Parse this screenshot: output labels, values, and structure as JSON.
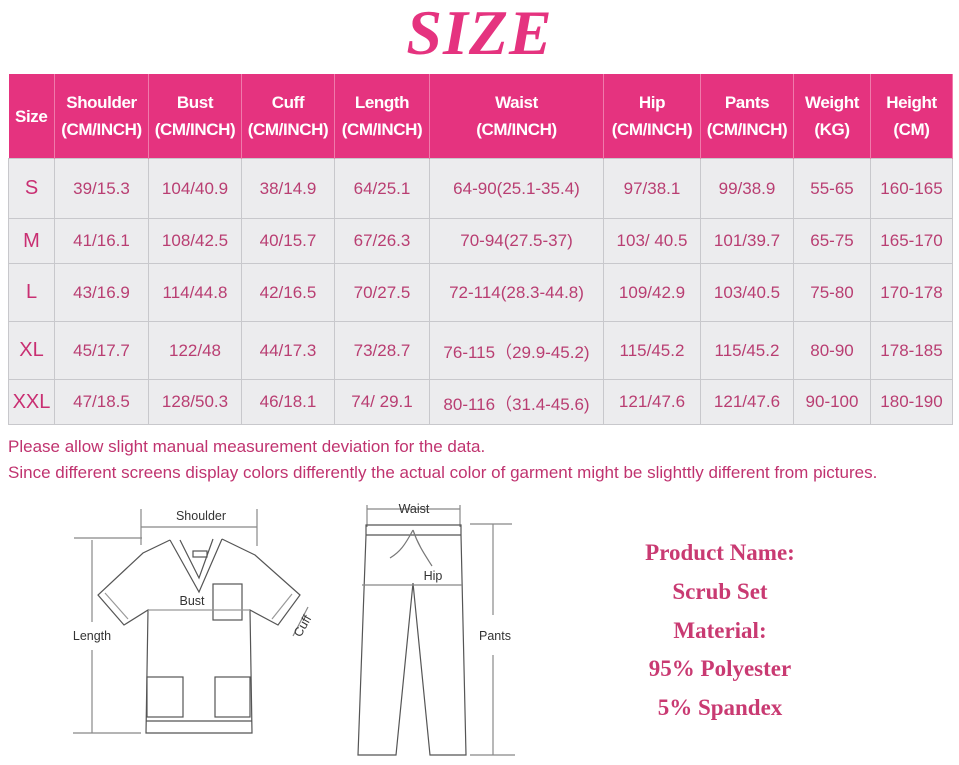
{
  "title": "SIZE",
  "table": {
    "headers": [
      {
        "name": "Size",
        "unit": ""
      },
      {
        "name": "Shoulder",
        "unit": "(CM/INCH)"
      },
      {
        "name": "Bust",
        "unit": "(CM/INCH)"
      },
      {
        "name": "Cuff",
        "unit": "(CM/INCH)"
      },
      {
        "name": "Length",
        "unit": "(CM/INCH)"
      },
      {
        "name": "Waist",
        "unit": "(CM/INCH)"
      },
      {
        "name": "Hip",
        "unit": "(CM/INCH)"
      },
      {
        "name": "Pants",
        "unit": "(CM/INCH)"
      },
      {
        "name": "Weight",
        "unit": "(KG)"
      },
      {
        "name": "Height",
        "unit": "(CM)"
      }
    ],
    "rows": [
      [
        "S",
        "39/15.3",
        "104/40.9",
        "38/14.9",
        "64/25.1",
        "64-90(25.1-35.4)",
        "97/38.1",
        "99/38.9",
        "55-65",
        "160-165"
      ],
      [
        "M",
        "41/16.1",
        "108/42.5",
        "40/15.7",
        "67/26.3",
        "70-94(27.5-37)",
        "103/ 40.5",
        "101/39.7",
        "65-75",
        "165-170"
      ],
      [
        "L",
        "43/16.9",
        "114/44.8",
        "42/16.5",
        "70/27.5",
        "72-114(28.3-44.8)",
        "109/42.9",
        "103/40.5",
        "75-80",
        "170-178"
      ],
      [
        "XL",
        "45/17.7",
        "122/48",
        "44/17.3",
        "73/28.7",
        "76-115（29.9-45.2)",
        "115/45.2",
        "115/45.2",
        "80-90",
        "178-185"
      ],
      [
        "XXL",
        "47/18.5",
        "128/50.3",
        "46/18.1",
        "74/ 29.1",
        "80-116（31.4-45.6)",
        "121/47.6",
        "121/47.6",
        "90-100",
        "180-190"
      ]
    ]
  },
  "notes": [
    "Please allow slight manual measurement deviation for the data.",
    "Since different screens display colors differently the actual color of garment might be slighttly different from pictures."
  ],
  "diagram_labels": {
    "shoulder": "Shoulder",
    "bust": "Bust",
    "length": "Length",
    "cuff": "Cuff",
    "waist": "Waist",
    "hip": "Hip",
    "pants": "Pants"
  },
  "product": {
    "name_label": "Product Name:",
    "name": "Scrub Set",
    "material_label": "Material:",
    "material_1": "95% Polyester",
    "material_2": "5% Spandex"
  },
  "colors": {
    "accent": "#e5337f",
    "text": "#b93e72",
    "cell_bg": "#ececee"
  }
}
